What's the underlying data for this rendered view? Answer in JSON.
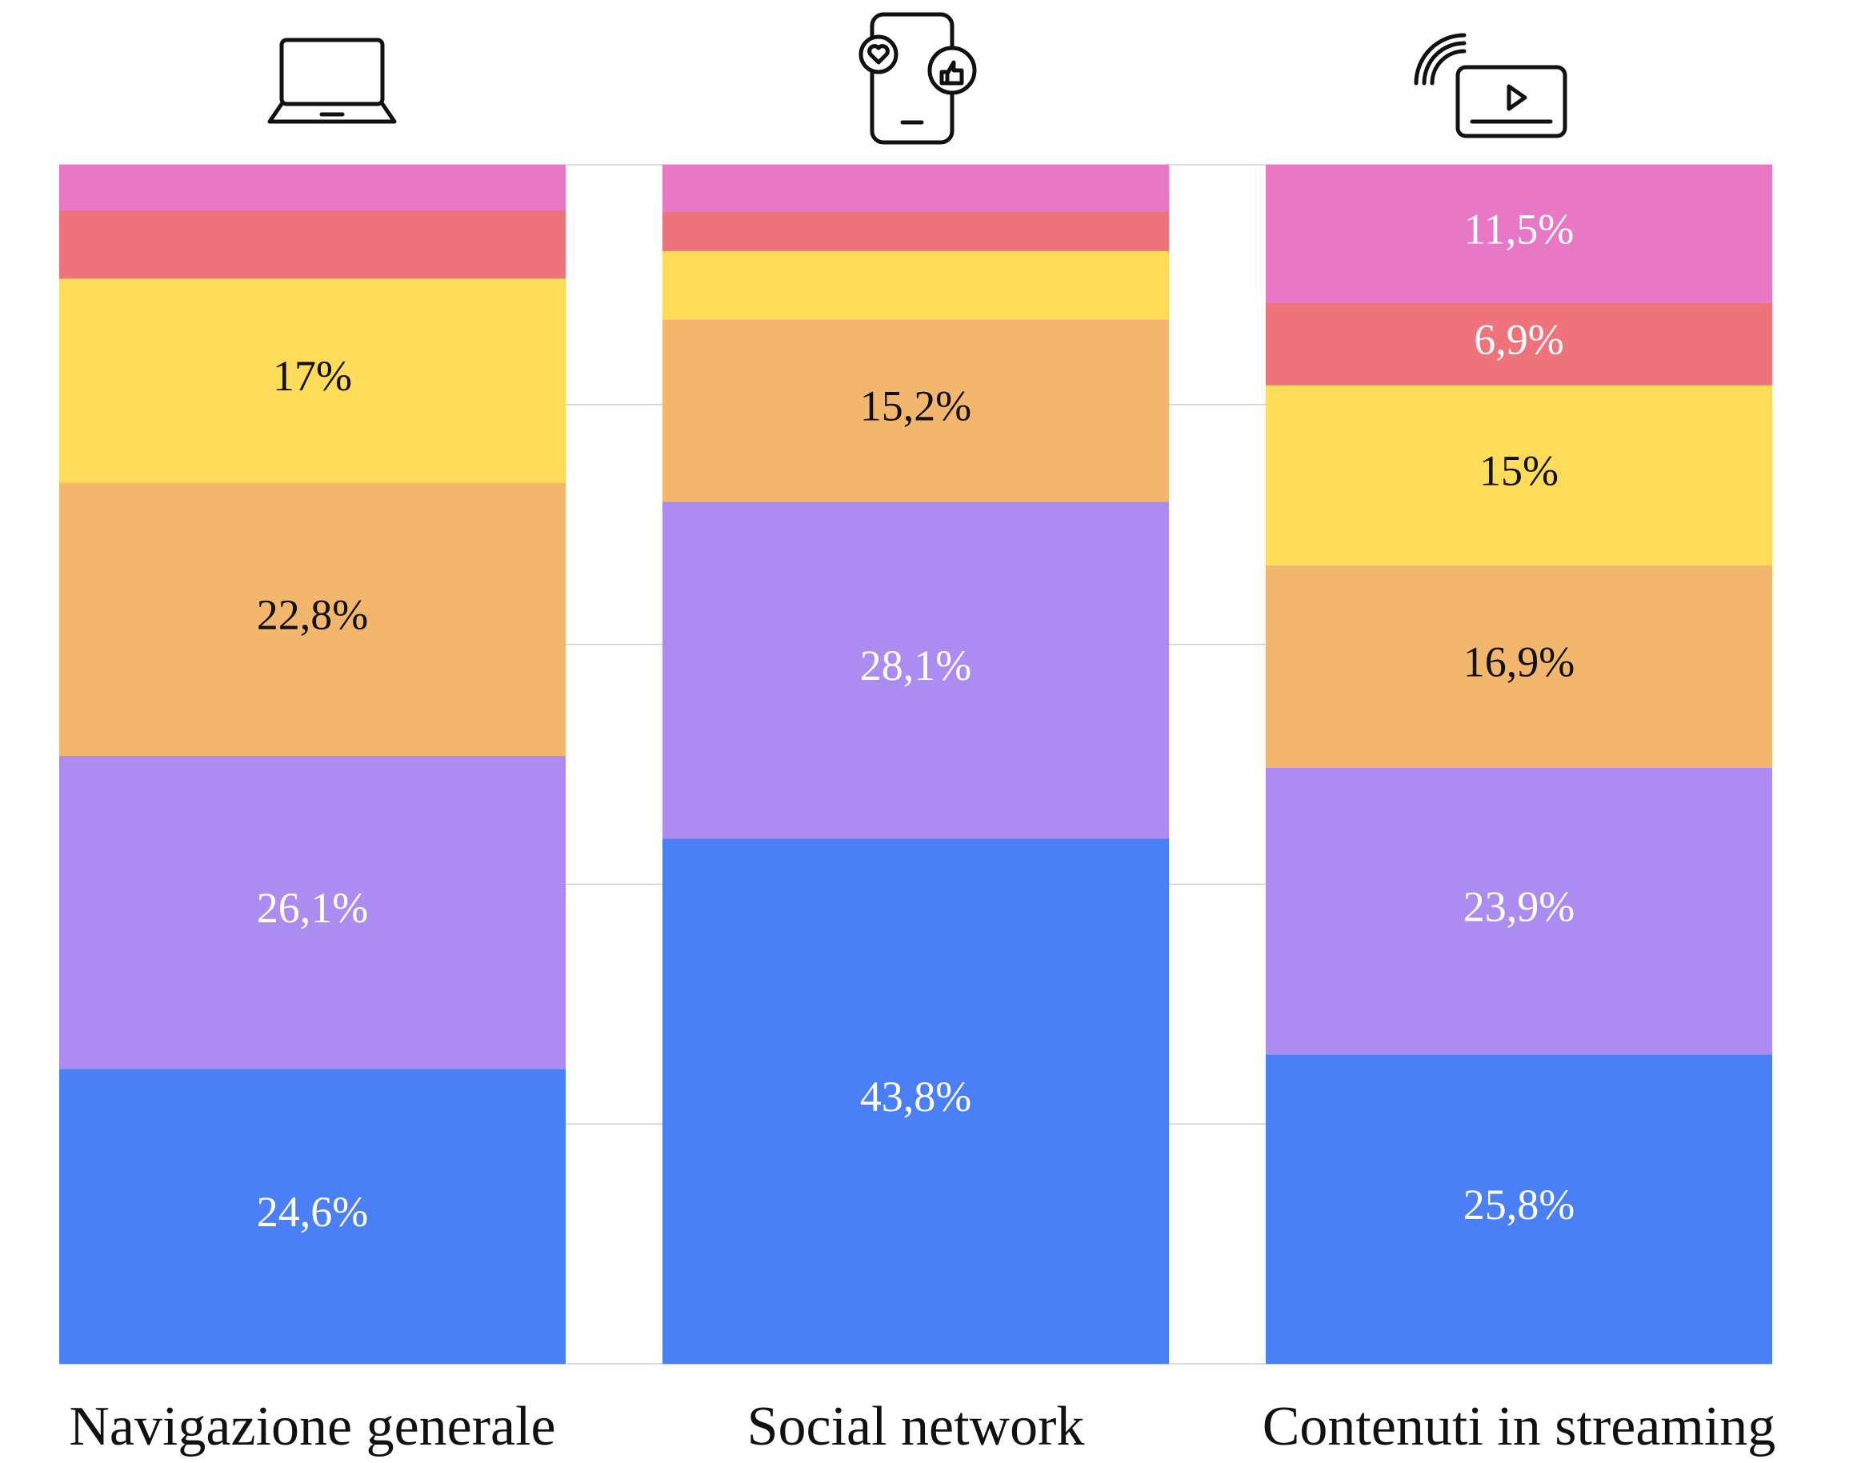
{
  "chart_data": {
    "type": "stacked_bar",
    "categories": [
      "Navigazione generale",
      "Social network",
      "Contenuti in streaming"
    ],
    "series": [
      {
        "color": "#4a7ff5",
        "values": [
          24.6,
          43.8,
          25.8
        ],
        "value_labels": [
          "24,6%",
          "43,8%",
          "25,8%"
        ]
      },
      {
        "color": "#ad8cf2",
        "values": [
          26.1,
          28.1,
          23.9
        ],
        "value_labels": [
          "26,1%",
          "28,1%",
          "23,9%"
        ]
      },
      {
        "color": "#f2b76d",
        "values": [
          22.8,
          15.2,
          16.9
        ],
        "value_labels": [
          "22,8%",
          "15,2%",
          "16,9%"
        ]
      },
      {
        "color": "#fedc5a",
        "values": [
          17,
          5.7,
          15
        ],
        "value_labels": [
          "17%",
          null,
          "15%"
        ]
      },
      {
        "color": "#f0737b",
        "values": [
          5.7,
          3.3,
          6.9
        ],
        "value_labels": [
          null,
          null,
          "6,9%"
        ]
      },
      {
        "color": "#e878c6",
        "values": [
          3.8,
          3.9,
          11.5
        ],
        "value_labels": [
          null,
          null,
          "11,5%"
        ]
      }
    ],
    "ylim": [
      0,
      100
    ],
    "yticks": [
      0,
      20,
      40,
      60,
      80,
      100
    ],
    "grid": true
  }
}
